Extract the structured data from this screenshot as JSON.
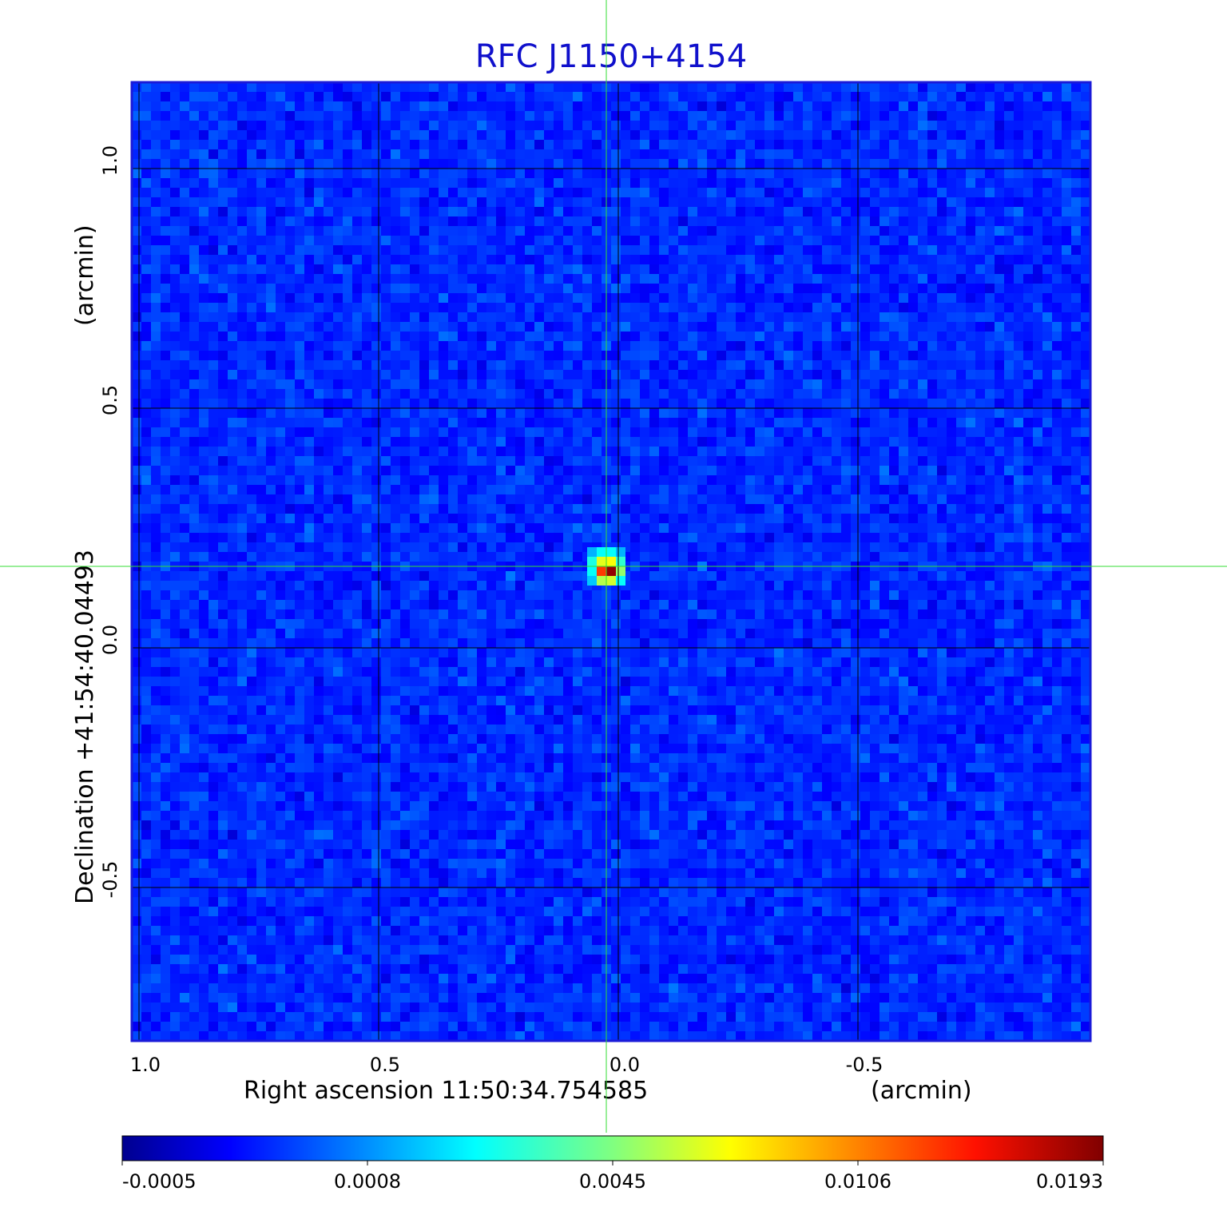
{
  "chart_data": {
    "type": "heatmap",
    "title": "RFC J1150+4154",
    "xlabel": "Right ascension  11:50:34.754585",
    "xunit": "(arcmin)",
    "ylabel": "Declination  +41:54:40.04493",
    "yunit": "(arcmin)",
    "x_ticks": [
      {
        "value": 1.0,
        "label": "1.0"
      },
      {
        "value": 0.5,
        "label": "0.5"
      },
      {
        "value": 0.0,
        "label": "0.0"
      },
      {
        "value": -0.5,
        "label": "-0.5"
      }
    ],
    "y_ticks": [
      {
        "value": 1.0,
        "label": "1.0"
      },
      {
        "value": 0.5,
        "label": "0.5"
      },
      {
        "value": 0.0,
        "label": "0.0"
      },
      {
        "value": -0.5,
        "label": "-0.5"
      }
    ],
    "xlim": [
      1.015,
      -0.985
    ],
    "ylim": [
      -0.82,
      1.18
    ],
    "x_reversed": true,
    "grid": true,
    "colormap": "jet",
    "colorbar": {
      "ticks": [
        "-0.0005",
        "0.0008",
        "0.0045",
        "0.0106",
        "0.0193"
      ],
      "range": [
        -0.0005,
        0.0193
      ]
    },
    "crosshair": {
      "x": 0.025,
      "y": 0.17,
      "color": "#33dd33"
    },
    "source": {
      "x": 0.025,
      "y": 0.17,
      "peak": 0.0193
    },
    "background_level": 0.0002,
    "colors": {
      "title": "#1010cc",
      "frame": "#1a1ad8",
      "grid": "#000000"
    }
  }
}
